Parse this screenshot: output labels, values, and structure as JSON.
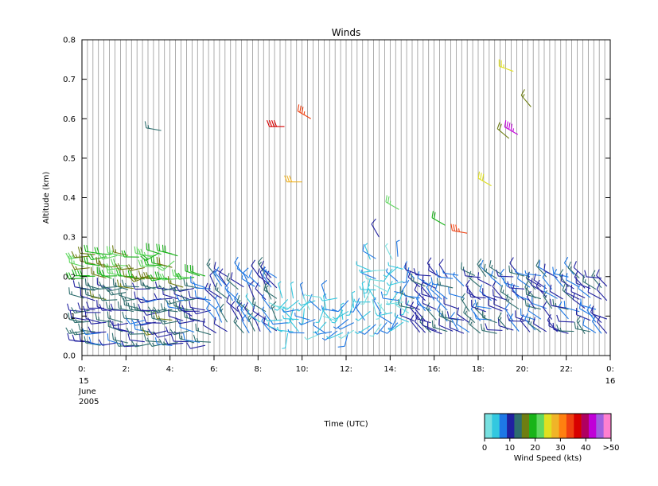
{
  "chart_data": {
    "type": "wind-barb",
    "title": "Winds",
    "xlabel": "Time (UTC)",
    "ylabel": "Altitude (km)",
    "x_unit": "hour UTC",
    "xlim": [
      0,
      24
    ],
    "ylim": [
      0,
      0.8
    ],
    "grid_x": true,
    "grid_y": false,
    "x_ticks": [
      {
        "value": 0,
        "label": "0:"
      },
      {
        "value": 2,
        "label": "2:"
      },
      {
        "value": 4,
        "label": "4:"
      },
      {
        "value": 6,
        "label": "6:"
      },
      {
        "value": 8,
        "label": "8:"
      },
      {
        "value": 10,
        "label": "10:"
      },
      {
        "value": 12,
        "label": "12:"
      },
      {
        "value": 14,
        "label": "14:"
      },
      {
        "value": 16,
        "label": "16:"
      },
      {
        "value": 18,
        "label": "18:"
      },
      {
        "value": 20,
        "label": "20:"
      },
      {
        "value": 22,
        "label": "22:"
      },
      {
        "value": 24,
        "label": "0:"
      }
    ],
    "x_sublabels": [
      {
        "value": 0,
        "lines": [
          "15",
          "June",
          "2005"
        ]
      },
      {
        "value": 24,
        "lines": [
          "16"
        ]
      }
    ],
    "y_ticks": [
      0.0,
      0.1,
      0.2,
      0.3,
      0.4,
      0.5,
      0.6,
      0.7,
      0.8
    ],
    "y_tick_labels": [
      "0.0",
      "0.1",
      "0.2",
      "0.3",
      "0.4",
      "0.5",
      "0.6",
      "0.7",
      "0.8"
    ],
    "colorbar": {
      "label": "Wind Speed (kts)",
      "tick_labels": [
        "0",
        "10",
        "20",
        "30",
        "40",
        ">50"
      ],
      "colors": [
        "#77e0e0",
        "#33c8e0",
        "#1e78e6",
        "#2020a0",
        "#2e6e6e",
        "#6e7e12",
        "#18b418",
        "#60d860",
        "#e0e020",
        "#f0b428",
        "#ff8010",
        "#f04010",
        "#d80000",
        "#b00060",
        "#c000d8",
        "#a060e0",
        "#ff80d0"
      ]
    },
    "representative_barbs": [
      {
        "time": 0.2,
        "alt": 0.09,
        "speed": 12,
        "dir": 280
      },
      {
        "time": 1.0,
        "alt": 0.12,
        "speed": 10,
        "dir": 270
      },
      {
        "time": 2.0,
        "alt": 0.16,
        "speed": 14,
        "dir": 260
      },
      {
        "time": 3.0,
        "alt": 0.2,
        "speed": 16,
        "dir": 250
      },
      {
        "time": 3.5,
        "alt": 0.26,
        "speed": 20,
        "dir": 240
      },
      {
        "time": 4.2,
        "alt": 0.24,
        "speed": 22,
        "dir": 230
      },
      {
        "time": 5.0,
        "alt": 0.1,
        "speed": 10,
        "dir": 300
      },
      {
        "time": 6.5,
        "alt": 0.18,
        "speed": 9,
        "dir": 320
      },
      {
        "time": 8.5,
        "alt": 0.18,
        "speed": 12,
        "dir": 310
      },
      {
        "time": 9.2,
        "alt": 0.58,
        "speed": 38,
        "dir": 270
      },
      {
        "time": 10.4,
        "alt": 0.6,
        "speed": 36,
        "dir": 300
      },
      {
        "time": 10.0,
        "alt": 0.44,
        "speed": 30,
        "dir": 270
      },
      {
        "time": 3.6,
        "alt": 0.57,
        "speed": 14,
        "dir": 280
      },
      {
        "time": 11.0,
        "alt": 0.12,
        "speed": 5,
        "dir": 200
      },
      {
        "time": 13.5,
        "alt": 0.3,
        "speed": 10,
        "dir": 330
      },
      {
        "time": 14.4,
        "alt": 0.37,
        "speed": 24,
        "dir": 300
      },
      {
        "time": 16.0,
        "alt": 0.14,
        "speed": 9,
        "dir": 330
      },
      {
        "time": 16.5,
        "alt": 0.33,
        "speed": 20,
        "dir": 300
      },
      {
        "time": 17.5,
        "alt": 0.31,
        "speed": 36,
        "dir": 280
      },
      {
        "time": 18.6,
        "alt": 0.43,
        "speed": 28,
        "dir": 300
      },
      {
        "time": 19.4,
        "alt": 0.55,
        "speed": 18,
        "dir": 310
      },
      {
        "time": 19.6,
        "alt": 0.72,
        "speed": 26,
        "dir": 290
      },
      {
        "time": 19.8,
        "alt": 0.56,
        "speed": 46,
        "dir": 300
      },
      {
        "time": 20.4,
        "alt": 0.63,
        "speed": 16,
        "dir": 320
      },
      {
        "time": 21.0,
        "alt": 0.16,
        "speed": 10,
        "dir": 300
      },
      {
        "time": 22.0,
        "alt": 0.12,
        "speed": 10,
        "dir": 280
      },
      {
        "time": 23.2,
        "alt": 0.1,
        "speed": 9,
        "dir": 300
      }
    ]
  }
}
